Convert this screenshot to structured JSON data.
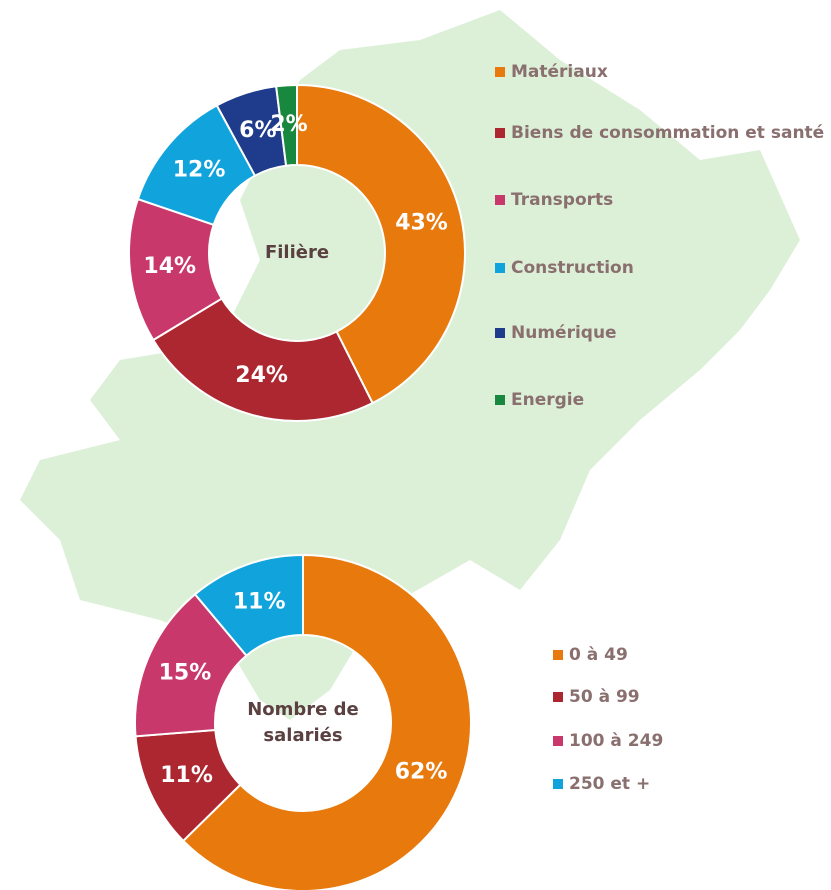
{
  "chart_data": [
    {
      "type": "donut",
      "title": "Filière",
      "categories": [
        "Matériaux",
        "Biens de consommation et santé",
        "Transports",
        "Construction",
        "Numérique",
        "Energie"
      ],
      "values": [
        43,
        24,
        14,
        12,
        6,
        2
      ],
      "value_labels": [
        "43%",
        "24%",
        "14%",
        "12%",
        "6%",
        "2%"
      ],
      "colors": [
        "#e8790c",
        "#ad2730",
        "#c9386a",
        "#10a3dc",
        "#1f3c8c",
        "#17883d"
      ]
    },
    {
      "type": "donut",
      "title": "Nombre de salariés",
      "categories": [
        "0 à 49",
        "50 à 99",
        "100 à 249",
        "250 et +"
      ],
      "values": [
        62,
        11,
        15,
        11
      ],
      "value_labels": [
        "62%",
        "11%",
        "15%",
        "11%"
      ],
      "colors": [
        "#e8790c",
        "#ad2730",
        "#c9386a",
        "#10a3dc"
      ]
    }
  ]
}
